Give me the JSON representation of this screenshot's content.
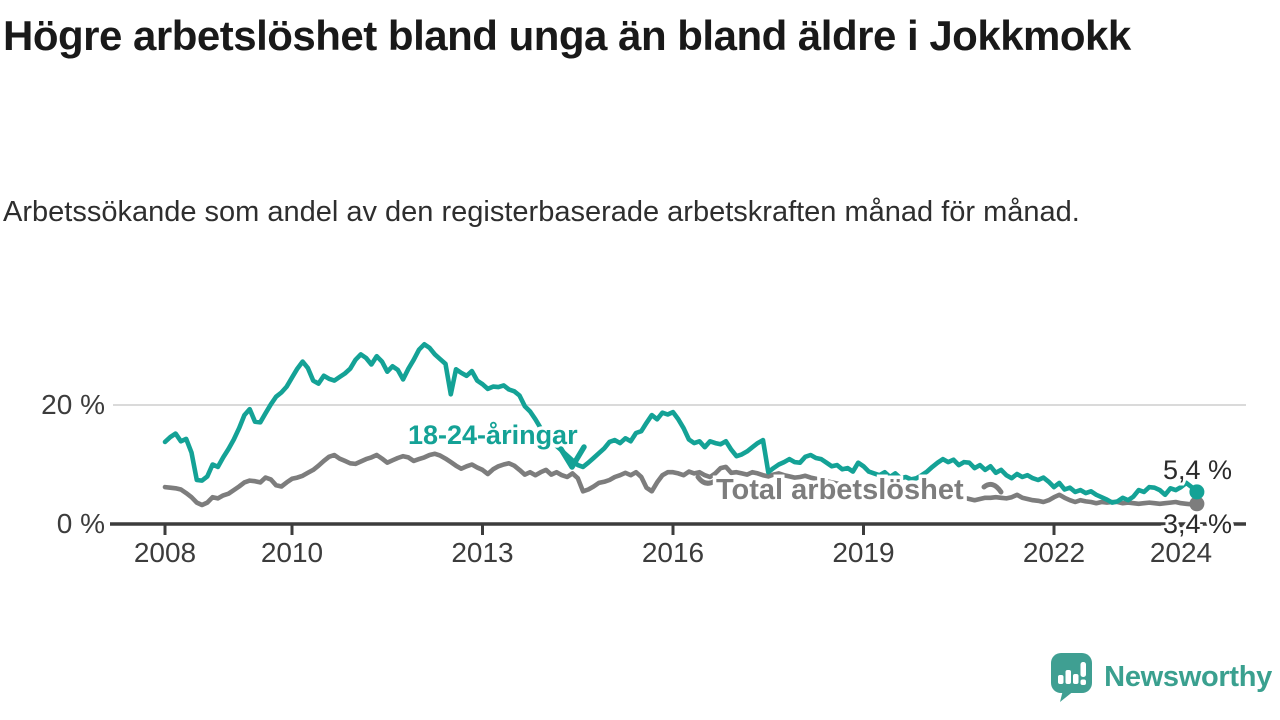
{
  "title": "Högre arbetslöshet bland unga än bland äldre i Jokkmokk",
  "subtitle": "Arbetssökande som andel av den registerbaserade arbetskraften månad för månad.",
  "branding": {
    "logo_text": "Newsworthy",
    "logo_icon": "newsworthy-speech-bubble-bar-chart-icon"
  },
  "colors": {
    "youth_line": "#14a296",
    "total_line": "#7d7d7d",
    "axis": "#3c3c3c",
    "grid": "#dadada",
    "title_text": "#191919",
    "value_label": "#2b2b2b",
    "logo": "#3f9f92"
  },
  "chart_data": {
    "type": "line",
    "title": "Högre arbetslöshet bland unga än bland äldre i Jokkmokk",
    "subtitle": "Arbetssökande som andel av den registerbaserade arbetskraften månad för månad.",
    "x_start_year": 2008,
    "frequency": "monthly",
    "x_tick_years": [
      2008,
      2010,
      2013,
      2016,
      2019,
      2022,
      2024
    ],
    "x_tick_labels": [
      "2008",
      "2010",
      "2013",
      "2016",
      "2019",
      "2022",
      "2024"
    ],
    "y_ticks": [
      {
        "value": 0,
        "label": "0 %"
      },
      {
        "value": 20,
        "label": "20 %"
      }
    ],
    "ylim": [
      0,
      32
    ],
    "grid": "single horizontal gridline at 20 %",
    "legend": "inline annotations on lines",
    "annotations": [
      {
        "text": "18-24-åringar",
        "color": "#14a296"
      },
      {
        "text": "Total arbetslöshet",
        "color": "#7d7d7d"
      }
    ],
    "series": [
      {
        "name": "Total arbetslöshet",
        "color": "#7d7d7d",
        "end_label": "3,4 %",
        "end_value": 3.4,
        "values": [
          6.2,
          6.1,
          6.0,
          5.8,
          5.2,
          4.5,
          3.6,
          3.2,
          3.6,
          4.5,
          4.3,
          4.8,
          5.1,
          5.7,
          6.3,
          7.0,
          7.3,
          7.2,
          7.0,
          7.8,
          7.5,
          6.5,
          6.3,
          7.0,
          7.6,
          7.8,
          8.1,
          8.6,
          9.1,
          9.8,
          10.6,
          11.3,
          11.6,
          11.0,
          10.6,
          10.2,
          10.1,
          10.5,
          10.9,
          11.2,
          11.6,
          11.0,
          10.3,
          10.7,
          11.1,
          11.4,
          11.2,
          10.6,
          10.9,
          11.2,
          11.6,
          11.8,
          11.5,
          11.0,
          10.4,
          9.8,
          9.3,
          9.7,
          10.0,
          9.5,
          9.1,
          8.4,
          9.2,
          9.7,
          10.0,
          10.2,
          9.8,
          9.1,
          8.3,
          8.7,
          8.2,
          8.7,
          9.1,
          8.3,
          8.7,
          8.2,
          7.9,
          8.5,
          7.7,
          5.5,
          5.8,
          6.3,
          6.9,
          7.1,
          7.4,
          7.9,
          8.2,
          8.6,
          8.2,
          8.7,
          7.9,
          6.1,
          5.5,
          7.0,
          8.2,
          8.7,
          8.7,
          8.5,
          8.2,
          8.8,
          8.5,
          8.7,
          8.2,
          7.9,
          8.5,
          9.4,
          9.6,
          8.6,
          8.7,
          8.5,
          8.3,
          8.7,
          8.5,
          8.2,
          8.0,
          8.3,
          8.5,
          8.2,
          8.0,
          7.8,
          7.9,
          8.1,
          7.8,
          7.6,
          7.4,
          7.2,
          7.0,
          6.8,
          6.6,
          6.5,
          6.4,
          6.3,
          6.2,
          6.0,
          5.9,
          5.8,
          5.7,
          5.6,
          5.5,
          5.3,
          5.2,
          5.1,
          5.0,
          4.9,
          4.8,
          4.5,
          5.0,
          5.2,
          5.1,
          4.8,
          4.5,
          4.4,
          4.2,
          4.0,
          4.2,
          4.4,
          4.4,
          4.5,
          4.4,
          4.3,
          4.5,
          4.9,
          4.4,
          4.2,
          4.0,
          3.9,
          3.7,
          4.0,
          4.5,
          4.9,
          4.4,
          4.0,
          3.7,
          4.0,
          3.8,
          3.7,
          3.5,
          3.7,
          3.6,
          3.7,
          3.7,
          3.5,
          3.6,
          3.5,
          3.4,
          3.5,
          3.6,
          3.5,
          3.4,
          3.5,
          3.6,
          3.7,
          3.5,
          3.4,
          3.3,
          3.4
        ]
      },
      {
        "name": "18-24-åringar",
        "color": "#14a296",
        "end_label": "5,4 %",
        "end_value": 5.4,
        "values": [
          13.8,
          14.6,
          15.2,
          13.9,
          14.3,
          12.0,
          7.4,
          7.3,
          8.0,
          10.0,
          9.6,
          11.2,
          12.6,
          14.2,
          16.1,
          18.3,
          19.3,
          17.2,
          17.1,
          18.6,
          20.1,
          21.4,
          22.1,
          23.1,
          24.6,
          26.1,
          27.3,
          26.2,
          24.1,
          23.6,
          24.9,
          24.4,
          24.1,
          24.7,
          25.3,
          26.1,
          27.6,
          28.5,
          27.9,
          26.8,
          28.2,
          27.3,
          25.6,
          26.5,
          25.9,
          24.3,
          26.1,
          27.6,
          29.3,
          30.2,
          29.6,
          28.5,
          27.7,
          26.9,
          21.8,
          26.0,
          25.4,
          24.9,
          25.7,
          24.1,
          23.5,
          22.7,
          23.1,
          23.0,
          23.3,
          22.6,
          22.3,
          21.6,
          19.8,
          18.9,
          17.6,
          16.1,
          14.6,
          13.9,
          13.1,
          12.3,
          11.5,
          10.7,
          9.9,
          9.6,
          10.3,
          11.1,
          11.9,
          12.7,
          13.8,
          14.1,
          13.6,
          14.4,
          13.9,
          15.3,
          15.6,
          17.0,
          18.3,
          17.6,
          18.7,
          18.4,
          18.8,
          17.6,
          16.1,
          14.2,
          13.6,
          13.9,
          12.9,
          13.9,
          13.6,
          13.4,
          13.9,
          12.5,
          11.4,
          11.7,
          12.2,
          12.9,
          13.6,
          14.1,
          8.7,
          9.4,
          10.0,
          10.4,
          10.9,
          10.4,
          10.3,
          11.3,
          11.6,
          11.1,
          10.9,
          10.3,
          9.7,
          9.9,
          9.2,
          9.4,
          8.8,
          10.3,
          9.7,
          8.8,
          8.5,
          8.2,
          8.7,
          7.9,
          8.5,
          7.7,
          7.9,
          7.5,
          7.7,
          8.2,
          8.8,
          9.6,
          10.3,
          10.9,
          10.4,
          10.8,
          9.9,
          10.4,
          10.3,
          9.4,
          9.9,
          9.1,
          9.7,
          8.6,
          9.1,
          8.2,
          7.7,
          8.4,
          7.9,
          8.2,
          7.7,
          7.4,
          7.8,
          7.1,
          6.2,
          6.9,
          5.8,
          6.1,
          5.4,
          5.7,
          5.2,
          5.5,
          4.9,
          4.5,
          4.1,
          3.6,
          3.8,
          4.4,
          4.0,
          4.6,
          5.7,
          5.4,
          6.2,
          6.1,
          5.7,
          4.9,
          6.0,
          5.7,
          6.2,
          6.9,
          6.2,
          5.4
        ]
      }
    ]
  }
}
